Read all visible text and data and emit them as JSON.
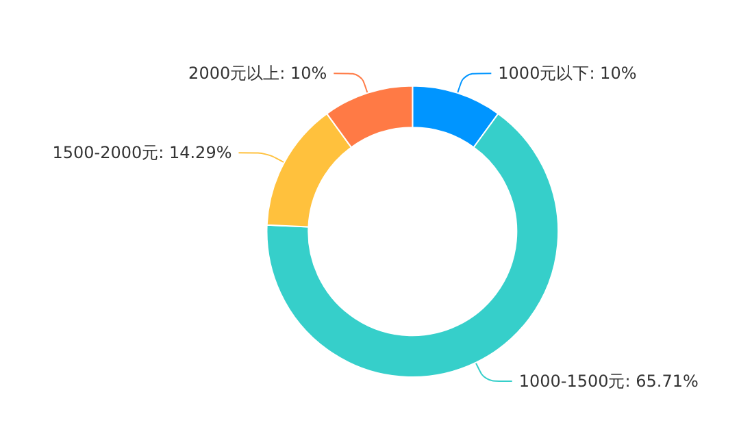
{
  "chart_data": {
    "type": "donut",
    "categories": [
      "1000元以下",
      "1000-1500元",
      "1500-2000元",
      "2000元以上"
    ],
    "values": [
      10,
      65.71,
      14.29,
      10
    ],
    "colors": [
      "#0095ff",
      "#36cfca",
      "#ffc13d",
      "#ff7a45"
    ],
    "value_labels": [
      "10%",
      "65.71%",
      "14.29%",
      "10%"
    ],
    "legend": false
  }
}
